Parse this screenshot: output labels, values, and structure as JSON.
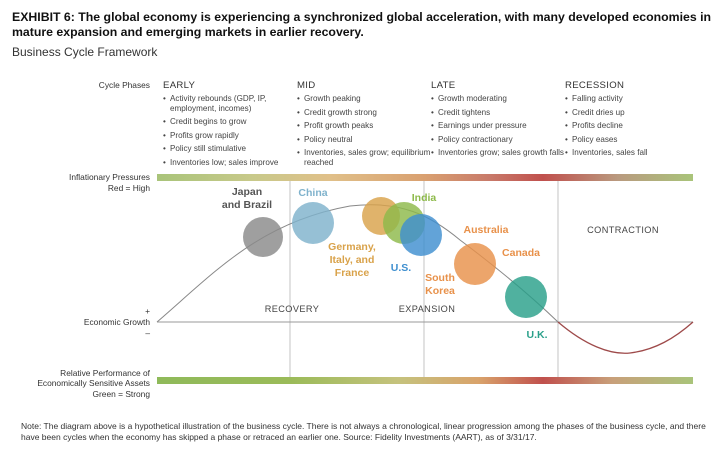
{
  "title": "EXHIBIT 6: The global economy is experiencing a synchronized global acceleration, with many developed economies in mature expansion and emerging markets in earlier recovery.",
  "subtitle": "Business Cycle Framework",
  "row_labels": {
    "cycle_phases": "Cycle Phases",
    "inflationary_pressures": "Inflationary Pressures",
    "inflationary_legend": "Red = High",
    "growth_plus": "+",
    "economic_growth": "Economic Growth",
    "growth_minus": "–",
    "relative_performance_1": "Relative Performance of",
    "relative_performance_2": "Economically Sensitive Assets",
    "relative_legend": "Green = Strong"
  },
  "phases": [
    {
      "name": "EARLY",
      "items": [
        "Activity rebounds (GDP, IP, employment, incomes)",
        "Credit begins to grow",
        "Profits grow rapidly",
        "Policy still stimulative",
        "Inventories low; sales improve"
      ]
    },
    {
      "name": "MID",
      "items": [
        "Growth peaking",
        "Credit growth strong",
        "Profit growth peaks",
        "Policy neutral",
        "Inventories, sales grow; equilibrium reached"
      ]
    },
    {
      "name": "LATE",
      "items": [
        "Growth moderating",
        "Credit tightens",
        "Earnings under pressure",
        "Policy contractionary",
        "Inventories grow; sales growth falls"
      ]
    },
    {
      "name": "RECESSION",
      "items": [
        "Falling activity",
        "Credit dries up",
        "Profits decline",
        "Policy eases",
        "Inventories, sales fall"
      ]
    }
  ],
  "zones": {
    "recovery": "RECOVERY",
    "expansion": "EXPANSION",
    "contraction": "CONTRACTION"
  },
  "countries": [
    {
      "id": "japan-brazil",
      "lines": [
        "Japan",
        "and Brazil"
      ],
      "color": "#8a8a8a"
    },
    {
      "id": "china",
      "lines": [
        "China"
      ],
      "color": "#7fb2cc"
    },
    {
      "id": "germany",
      "lines": [
        "Germany,",
        "Italy, and",
        "France"
      ],
      "color": "#d9a24a"
    },
    {
      "id": "india",
      "lines": [
        "India"
      ],
      "color": "#8dba4a"
    },
    {
      "id": "us",
      "lines": [
        "U.S."
      ],
      "color": "#3f8fcf"
    },
    {
      "id": "australia",
      "lines": [
        "Australia"
      ],
      "color": "#e8914a"
    },
    {
      "id": "canada",
      "lines": [
        "Canada"
      ],
      "color": "#e8914a"
    },
    {
      "id": "south-korea",
      "lines": [
        "South",
        "Korea"
      ],
      "color": "#e8914a"
    },
    {
      "id": "uk",
      "lines": [
        "U.K."
      ],
      "color": "#2aa08a"
    }
  ],
  "colors": {
    "high_inflation": "#c0504d",
    "low_inflation": "#9bbb59",
    "curve": "#888888",
    "recession_curve": "#9e4a4a"
  },
  "note": "Note: The diagram above is a hypothetical illustration of the business cycle. There is not always a chronological, linear progression among the phases of the business cycle, and there have been cycles when the economy has skipped a phase or retraced an earlier one. Source: Fidelity Investments (AART), as of 3/31/17."
}
